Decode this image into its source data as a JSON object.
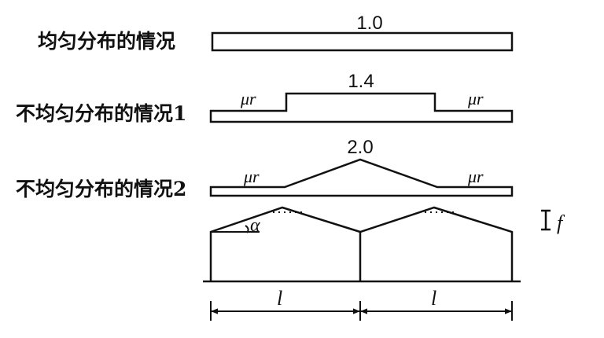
{
  "cases": [
    {
      "label": "均匀分布的情况",
      "value": "1.0"
    },
    {
      "label": "不均匀分布的情况1",
      "value": "1.4",
      "side_coeff": "μr"
    },
    {
      "label": "不均匀分布的情况2",
      "value": "2.0",
      "side_coeff": "μr"
    }
  ],
  "symbols": {
    "angle": "α",
    "rise": "f",
    "span": "l"
  }
}
